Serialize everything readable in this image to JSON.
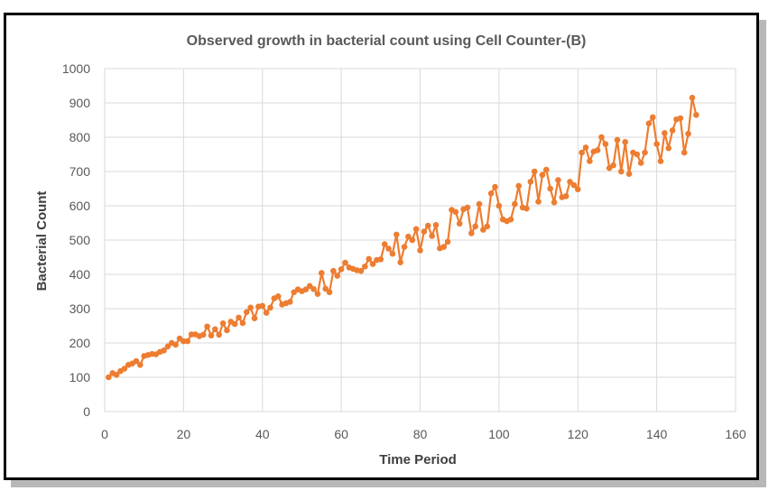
{
  "chart_data": {
    "type": "line",
    "title": "Observed growth in bacterial count using Cell Counter-(B)",
    "xlabel": "Time Period",
    "ylabel": "Bacterial Count",
    "xlim": [
      0,
      160
    ],
    "ylim": [
      0,
      1000
    ],
    "xticks": [
      0,
      20,
      40,
      60,
      80,
      100,
      120,
      140,
      160
    ],
    "yticks": [
      0,
      100,
      200,
      300,
      400,
      500,
      600,
      700,
      800,
      900,
      1000
    ],
    "grid": true,
    "legend": "none",
    "series": [
      {
        "color": "#ED7D31",
        "marker": "circle",
        "x": [
          1,
          2,
          3,
          4,
          5,
          6,
          7,
          8,
          9,
          10,
          11,
          12,
          13,
          14,
          15,
          16,
          17,
          18,
          19,
          20,
          21,
          22,
          23,
          24,
          25,
          26,
          27,
          28,
          29,
          30,
          31,
          32,
          33,
          34,
          35,
          36,
          37,
          38,
          39,
          40,
          41,
          42,
          43,
          44,
          45,
          46,
          47,
          48,
          49,
          50,
          51,
          52,
          53,
          54,
          55,
          56,
          57,
          58,
          59,
          60,
          61,
          62,
          63,
          64,
          65,
          66,
          67,
          68,
          69,
          70,
          71,
          72,
          73,
          74,
          75,
          76,
          77,
          78,
          79,
          80,
          81,
          82,
          83,
          84,
          85,
          86,
          87,
          88,
          89,
          90,
          91,
          92,
          93,
          94,
          95,
          96,
          97,
          98,
          99,
          100,
          101,
          102,
          103,
          104,
          105,
          106,
          107,
          108,
          109,
          110,
          111,
          112,
          113,
          114,
          115,
          116,
          117,
          118,
          119,
          120,
          121,
          122,
          123,
          124,
          125,
          126,
          127,
          128,
          129,
          130,
          131,
          132,
          133,
          134,
          135,
          136,
          137,
          138,
          139,
          140,
          141,
          142,
          143,
          144,
          145,
          146,
          147,
          148,
          149,
          150
        ],
        "y": [
          100,
          112,
          107,
          118,
          125,
          136,
          140,
          147,
          136,
          162,
          165,
          168,
          167,
          174,
          178,
          190,
          200,
          195,
          213,
          205,
          205,
          225,
          225,
          220,
          224,
          248,
          222,
          240,
          224,
          257,
          237,
          262,
          255,
          274,
          258,
          290,
          303,
          272,
          306,
          308,
          288,
          303,
          330,
          336,
          312,
          316,
          320,
          348,
          356,
          351,
          356,
          366,
          357,
          343,
          404,
          358,
          348,
          410,
          396,
          415,
          434,
          420,
          416,
          412,
          410,
          423,
          445,
          430,
          442,
          444,
          488,
          475,
          460,
          516,
          435,
          480,
          510,
          500,
          532,
          470,
          525,
          542,
          512,
          544,
          476,
          480,
          495,
          588,
          582,
          548,
          590,
          595,
          520,
          540,
          605,
          530,
          540,
          636,
          655,
          600,
          560,
          555,
          560,
          605,
          658,
          595,
          592,
          670,
          700,
          612,
          690,
          705,
          650,
          610,
          675,
          625,
          628,
          670,
          660,
          648,
          755,
          770,
          730,
          758,
          762,
          800,
          780,
          710,
          718,
          792,
          700,
          786,
          693,
          755,
          750,
          725,
          755,
          840,
          858,
          780,
          730,
          812,
          768,
          820,
          852,
          855,
          755,
          810,
          915,
          865
        ]
      }
    ]
  }
}
